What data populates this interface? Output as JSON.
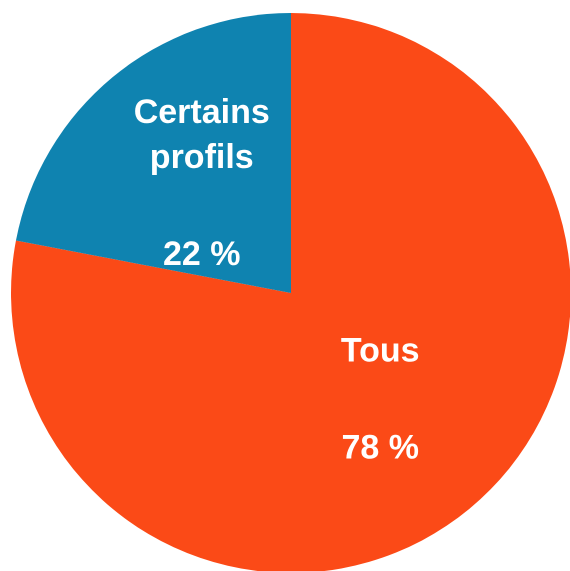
{
  "chart_data": {
    "type": "pie",
    "categories": [
      "Tous",
      "Certains profils"
    ],
    "values": [
      78,
      22
    ],
    "value_labels": [
      "78 %",
      "22 %"
    ],
    "colors": [
      "#fb4a17",
      "#0f83b0"
    ]
  }
}
